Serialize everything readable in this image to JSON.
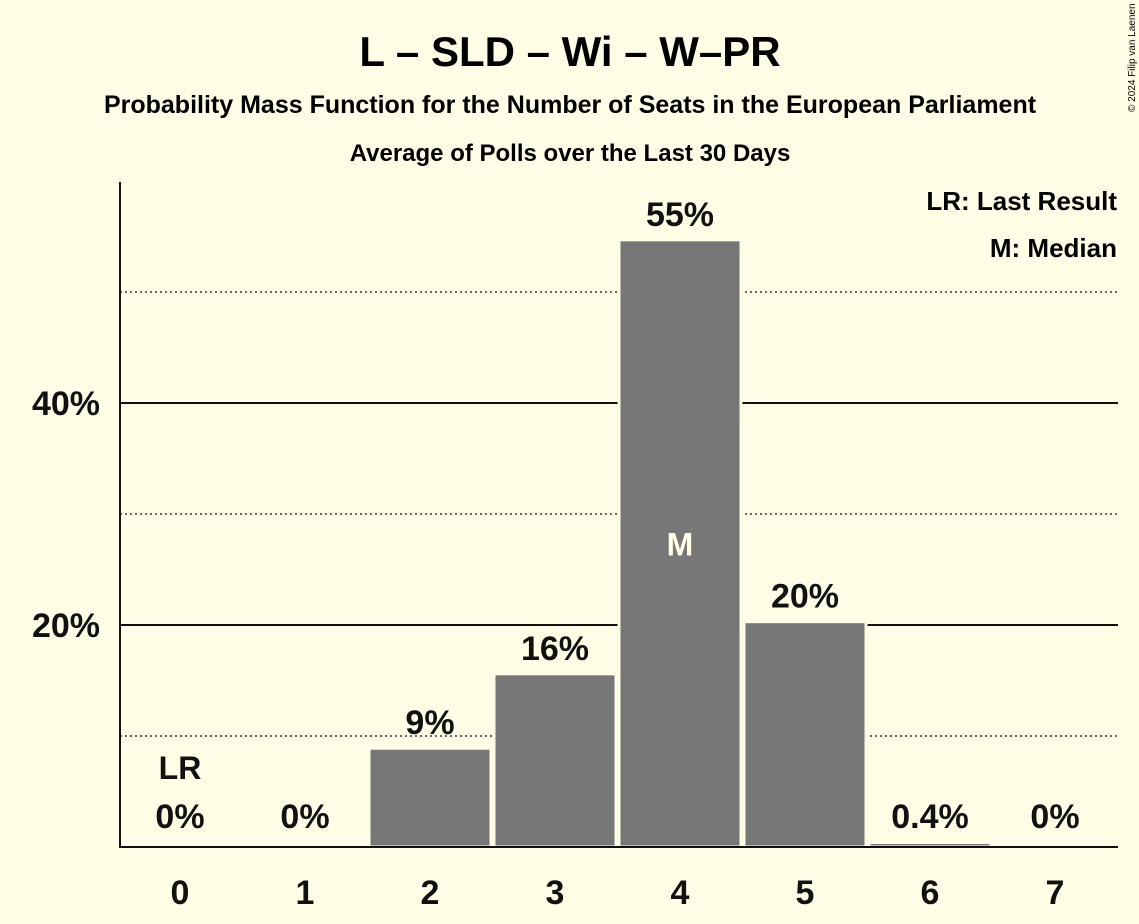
{
  "title": "L – SLD – Wi – W–PR",
  "subtitle": "Probability Mass Function for the Number of Seats in the European Parliament",
  "subtitle2": "Average of Polls over the Last 30 Days",
  "copyright": "© 2024 Filip van Laenen",
  "legend": {
    "last_result": "LR: Last Result",
    "median": "M: Median"
  },
  "colors": {
    "background": "#fffde6",
    "bar": "#777777",
    "text": "#111111"
  },
  "chart_data": {
    "type": "bar",
    "title": "L – SLD – Wi – W–PR",
    "xlabel": "",
    "ylabel": "",
    "categories": [
      "0",
      "1",
      "2",
      "3",
      "4",
      "5",
      "6",
      "7"
    ],
    "values": [
      0,
      0,
      8.9,
      15.6,
      54.7,
      20.3,
      0.4,
      0
    ],
    "data_labels": [
      "0%",
      "0%",
      "9%",
      "16%",
      "55%",
      "20%",
      "0.4%",
      "0%"
    ],
    "ylim": [
      0,
      60
    ],
    "yticks": [
      {
        "value": 20,
        "label": "20%"
      },
      {
        "value": 40,
        "label": "40%"
      }
    ],
    "minor_gridlines": [
      10,
      30,
      50
    ],
    "last_result_index": 0,
    "last_result_marker": "LR",
    "median_index": 4,
    "median_marker": "M",
    "legend_position": "top-right"
  }
}
